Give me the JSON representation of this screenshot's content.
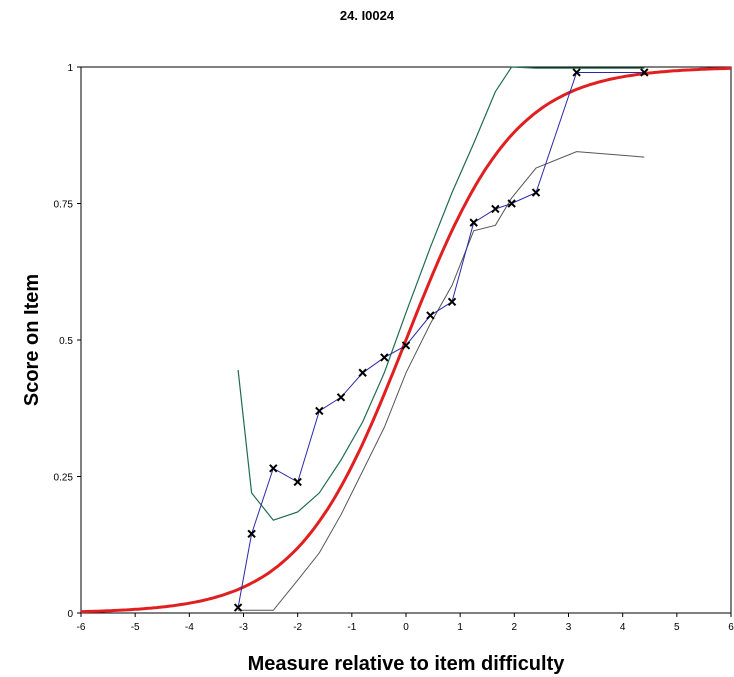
{
  "chart_data": {
    "type": "line",
    "title": "24. I0024",
    "xlabel": "Measure relative to item difficulty",
    "ylabel": "Score on Item",
    "xlim": [
      -6,
      6
    ],
    "ylim": [
      0,
      1
    ],
    "x_ticks": [
      -6,
      -5,
      -4,
      -3,
      -2,
      -1,
      0,
      1,
      2,
      3,
      4,
      5,
      6
    ],
    "y_ticks": [
      0,
      0.25,
      0.5,
      0.75,
      1
    ],
    "y_tick_labels": [
      "0",
      "0.25",
      "0.5",
      "0.75",
      "1"
    ],
    "grid": false,
    "colors": {
      "model_curve": "#e02020",
      "empirical": "#2a2aa8",
      "upper_band": "#1f6b4f",
      "lower_band": "#555555"
    },
    "series": [
      {
        "role": "model_curve",
        "function": "logistic",
        "x_range": [
          -6,
          6
        ]
      },
      {
        "role": "empirical",
        "marker": "x",
        "x": [
          -3.1,
          -2.85,
          -2.45,
          -2.0,
          -1.6,
          -1.2,
          -0.8,
          -0.4,
          0.0,
          0.45,
          0.85,
          1.25,
          1.65,
          1.95,
          2.4,
          3.15,
          4.4
        ],
        "y": [
          0.01,
          0.145,
          0.265,
          0.24,
          0.37,
          0.395,
          0.44,
          0.468,
          0.49,
          0.545,
          0.57,
          0.715,
          0.74,
          0.75,
          0.77,
          0.99,
          0.99
        ]
      },
      {
        "role": "upper_band",
        "x": [
          -3.1,
          -2.85,
          -2.45,
          -2.0,
          -1.6,
          -1.2,
          -0.8,
          -0.4,
          0.0,
          0.45,
          0.85,
          1.25,
          1.65,
          1.95,
          2.4,
          3.15,
          4.4
        ],
        "y": [
          0.445,
          0.22,
          0.17,
          0.185,
          0.22,
          0.28,
          0.35,
          0.44,
          0.55,
          0.67,
          0.77,
          0.86,
          0.955,
          1.0,
          0.998,
          0.998,
          0.998
        ]
      },
      {
        "role": "lower_band",
        "x": [
          -3.1,
          -2.85,
          -2.45,
          -2.0,
          -1.6,
          -1.2,
          -0.8,
          -0.4,
          0.0,
          0.45,
          0.85,
          1.25,
          1.65,
          1.95,
          2.4,
          3.15,
          4.4
        ],
        "y": [
          0.005,
          0.005,
          0.005,
          0.06,
          0.11,
          0.18,
          0.26,
          0.34,
          0.44,
          0.53,
          0.6,
          0.7,
          0.71,
          0.76,
          0.815,
          0.845,
          0.835
        ]
      }
    ]
  }
}
